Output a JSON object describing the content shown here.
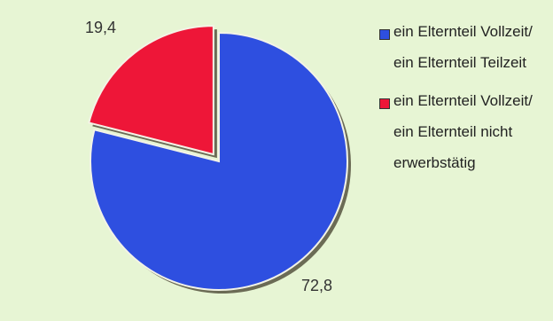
{
  "chart_data": {
    "type": "pie",
    "categories": [
      "ein Elternteil Vollzeit/ ein Elternteil Teilzeit",
      "ein Elternteil Vollzeit/ ein Elternteil nicht erwerbstätig"
    ],
    "values": [
      72.8,
      19.4
    ],
    "value_labels": [
      "72,8",
      "19,4"
    ],
    "colors": [
      "#2e4fe0",
      "#ee1638"
    ],
    "exploded": [
      false,
      true
    ],
    "legend_position": "right"
  }
}
